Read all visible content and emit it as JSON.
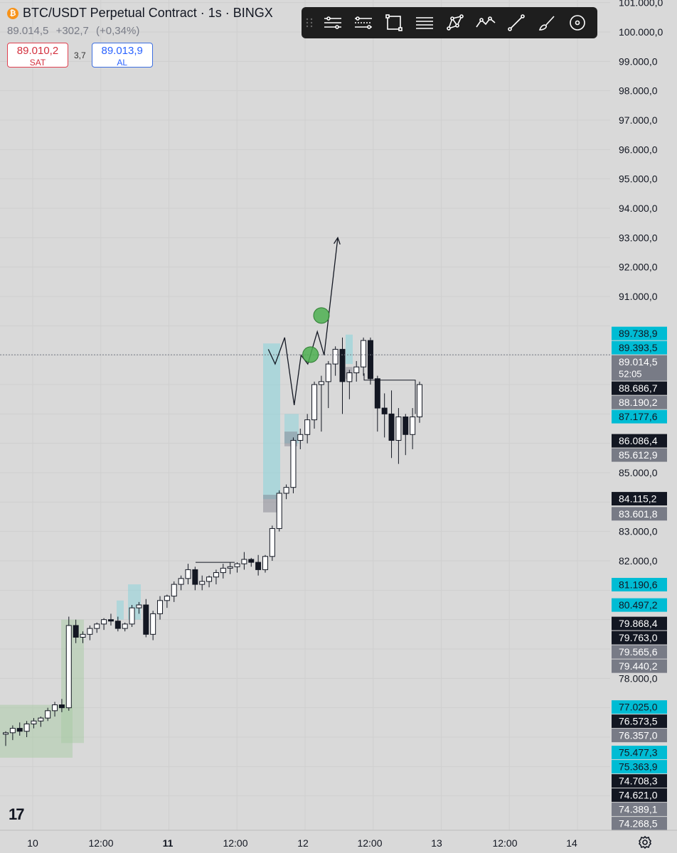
{
  "header": {
    "coin_icon": "bitcoin-icon",
    "coin_glyph": "₿",
    "symbol": "BTC/USDT Perpetual Contract · 1s · BINGX",
    "last": "89.014,5",
    "change": "+302,7",
    "change_pct": "(+0,34%)",
    "sell_price": "89.010,2",
    "sell_label": "SAT",
    "spread": "3,7",
    "buy_price": "89.013,9",
    "buy_label": "AL"
  },
  "toolbar": {
    "items": [
      {
        "name": "horizontal-lines-icon"
      },
      {
        "name": "dotted-lines-icon"
      },
      {
        "name": "rectangle-icon"
      },
      {
        "name": "lines-icon"
      },
      {
        "name": "pattern-icon"
      },
      {
        "name": "zigzag-icon"
      },
      {
        "name": "trendline-icon"
      },
      {
        "name": "brush-icon"
      },
      {
        "name": "eye-icon"
      }
    ]
  },
  "logo": "17",
  "settings_icon": "gear-icon",
  "colors": {
    "background": "#d9d9d9",
    "cyan": "#00bcd4",
    "dark": "#131722",
    "gray": "#787b86",
    "green": "#4caf50"
  },
  "chart_data": {
    "type": "candlestick",
    "price_axis": {
      "ticks": [
        "101.000,0",
        "100.000,0",
        "99.000,0",
        "98.000,0",
        "97.000,0",
        "96.000,0",
        "95.000,0",
        "94.000,0",
        "93.000,0",
        "92.000,0",
        "91.000,0",
        "85.000,0",
        "83.000,0",
        "82.000,0",
        "78.000,0"
      ],
      "range": [
        73900,
        101100
      ]
    },
    "time_axis": {
      "ticks": [
        "10",
        "12:00",
        "11",
        "12:00",
        "12",
        "12:00",
        "13",
        "12:00",
        "14"
      ]
    },
    "price_labels": [
      {
        "text": "89.738,9",
        "value": 89738.9,
        "style": "cyan"
      },
      {
        "text": "89.393,5",
        "value": 89393.5,
        "style": "cyan"
      },
      {
        "text": "89.014,5",
        "value": 89014.5,
        "style": "gray",
        "sub": "52:05"
      },
      {
        "text": "88.686,7",
        "value": 88686.7,
        "style": "dark"
      },
      {
        "text": "88.190,2",
        "value": 88190.2,
        "style": "gray"
      },
      {
        "text": "87.177,6",
        "value": 87177.6,
        "style": "cyan"
      },
      {
        "text": "86.086,4",
        "value": 86086.4,
        "style": "dark"
      },
      {
        "text": "85.612,9",
        "value": 85612.9,
        "style": "gray"
      },
      {
        "text": "84.115,2",
        "value": 84115.2,
        "style": "dark"
      },
      {
        "text": "83.601,8",
        "value": 83601.8,
        "style": "gray"
      },
      {
        "text": "81.190,6",
        "value": 81190.6,
        "style": "cyan"
      },
      {
        "text": "80.497,2",
        "value": 80497.2,
        "style": "cyan"
      },
      {
        "text": "79.868,4",
        "value": 79868.4,
        "style": "dark"
      },
      {
        "text": "79.763,0",
        "value": 79763.0,
        "style": "dark"
      },
      {
        "text": "79.565,6",
        "value": 79565.6,
        "style": "gray"
      },
      {
        "text": "79.440,2",
        "value": 79440.2,
        "style": "gray"
      },
      {
        "text": "77.025,0",
        "value": 77025.0,
        "style": "cyan"
      },
      {
        "text": "76.573,5",
        "value": 76573.5,
        "style": "dark"
      },
      {
        "text": "76.357,0",
        "value": 76357.0,
        "style": "gray"
      },
      {
        "text": "75.477,3",
        "value": 75477.3,
        "style": "cyan"
      },
      {
        "text": "75.363,9",
        "value": 75363.9,
        "style": "cyan"
      },
      {
        "text": "74.708,3",
        "value": 74708.3,
        "style": "dark"
      },
      {
        "text": "74.621,0",
        "value": 74621.0,
        "style": "dark"
      },
      {
        "text": "74.389,1",
        "value": 74389.1,
        "style": "gray"
      },
      {
        "text": "74.268,5",
        "value": 74268.5,
        "style": "gray"
      }
    ],
    "candles": [
      [
        76100,
        76200,
        75700,
        76150
      ],
      [
        76150,
        76400,
        75900,
        76300
      ],
      [
        76300,
        76500,
        76050,
        76200
      ],
      [
        76200,
        76550,
        76000,
        76450
      ],
      [
        76450,
        76650,
        76300,
        76550
      ],
      [
        76550,
        76700,
        76350,
        76650
      ],
      [
        76650,
        77000,
        76550,
        76900
      ],
      [
        76900,
        77200,
        76700,
        77100
      ],
      [
        77100,
        77300,
        76850,
        77000
      ],
      [
        77000,
        80100,
        76900,
        79800
      ],
      [
        79800,
        80000,
        79200,
        79400
      ],
      [
        79400,
        79600,
        79200,
        79500
      ],
      [
        79500,
        79800,
        79300,
        79700
      ],
      [
        79700,
        79900,
        79550,
        79850
      ],
      [
        79850,
        80050,
        79650,
        80000
      ],
      [
        80000,
        80200,
        79800,
        79950
      ],
      [
        79950,
        80100,
        79600,
        79700
      ],
      [
        79700,
        79900,
        79600,
        79850
      ],
      [
        79850,
        80500,
        79750,
        80400
      ],
      [
        80400,
        80600,
        80200,
        80500
      ],
      [
        80500,
        80700,
        79400,
        79500
      ],
      [
        79500,
        80300,
        79300,
        80200
      ],
      [
        80200,
        80800,
        80000,
        80650
      ],
      [
        80650,
        80850,
        80400,
        80800
      ],
      [
        80800,
        81300,
        80600,
        81200
      ],
      [
        81200,
        81500,
        81000,
        81400
      ],
      [
        81400,
        81900,
        81200,
        81700
      ],
      [
        81700,
        81800,
        81000,
        81200
      ],
      [
        81200,
        81500,
        81000,
        81300
      ],
      [
        81300,
        81500,
        81100,
        81450
      ],
      [
        81450,
        81700,
        81200,
        81600
      ],
      [
        81600,
        81900,
        81400,
        81750
      ],
      [
        81750,
        81950,
        81550,
        81800
      ],
      [
        81800,
        81950,
        81600,
        81900
      ],
      [
        81900,
        82300,
        81700,
        82050
      ],
      [
        82050,
        82100,
        81800,
        81950
      ],
      [
        81950,
        82200,
        81500,
        81700
      ],
      [
        81700,
        82200,
        81600,
        82150
      ],
      [
        82150,
        83200,
        82000,
        83100
      ],
      [
        83100,
        84400,
        83000,
        84300
      ],
      [
        84300,
        84600,
        84100,
        84500
      ],
      [
        84500,
        86200,
        84300,
        86100
      ],
      [
        86100,
        86500,
        85800,
        86300
      ],
      [
        86300,
        87000,
        86000,
        86800
      ],
      [
        86800,
        88100,
        86500,
        88000
      ],
      [
        88000,
        88300,
        86400,
        88100
      ],
      [
        88100,
        88800,
        87200,
        88700
      ],
      [
        88700,
        89300,
        88300,
        89200
      ],
      [
        89200,
        89600,
        87000,
        88100
      ],
      [
        88100,
        88500,
        87500,
        88400
      ],
      [
        88400,
        88800,
        88100,
        88600
      ],
      [
        88600,
        89600,
        88300,
        89500
      ],
      [
        89500,
        89600,
        88000,
        88200
      ],
      [
        88200,
        88300,
        86400,
        87200
      ],
      [
        87200,
        87700,
        86200,
        87000
      ],
      [
        87000,
        87800,
        85500,
        86100
      ],
      [
        86100,
        87200,
        85300,
        86900
      ],
      [
        86900,
        87000,
        85600,
        86300
      ],
      [
        86300,
        87200,
        85800,
        86900
      ],
      [
        86900,
        88100,
        86700,
        88000
      ]
    ],
    "projection": [
      {
        "x": 1.73,
        "y": 89200
      },
      {
        "x": 1.78,
        "y": 88700
      },
      {
        "x": 1.85,
        "y": 89600
      },
      {
        "x": 1.92,
        "y": 87300
      },
      {
        "x": 1.97,
        "y": 89000
      },
      {
        "x": 2.02,
        "y": 88700
      },
      {
        "x": 2.09,
        "y": 89800
      },
      {
        "x": 2.14,
        "y": 89000
      },
      {
        "x": 2.24,
        "y": 93000
      }
    ],
    "markers": [
      {
        "x": 2.04,
        "y": 89020
      },
      {
        "x": 2.12,
        "y": 90350
      }
    ]
  }
}
